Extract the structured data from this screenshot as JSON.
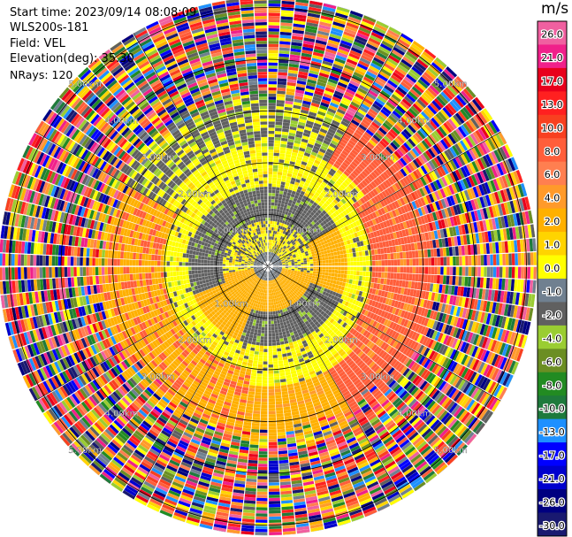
{
  "info": {
    "start_time": "Start time: 2023/09/14 08:08:09",
    "lidar": "WLS200s-181",
    "field": "Field: VEL",
    "elevation": "Elevation(deg): 35.30",
    "nrays": "NRays: 120"
  },
  "colorbar": {
    "title": "m/s",
    "ticks": [
      "26.0",
      "21.0",
      "17.0",
      "13.0",
      "10.0",
      "8.0",
      "6.0",
      "4.0",
      "2.0",
      "1.0",
      "0.0",
      "-1.0",
      "-2.0",
      "-4.0",
      "-6.0",
      "-8.0",
      "-10.0",
      "-13.0",
      "-17.0",
      "-21.0",
      "-26.0",
      "-30.0"
    ],
    "colors": [
      "#f060a0",
      "#f0208a",
      "#e8001c",
      "#ff2020",
      "#f84020",
      "#ff5e3a",
      "#ff7f50",
      "#ff9a2a",
      "#ffb000",
      "#ffd400",
      "#ffff00",
      "#708090",
      "#606060",
      "#9acd32",
      "#6b8e23",
      "#228b22",
      "#1e7a3c",
      "#1e90ff",
      "#0000ff",
      "#0000cd",
      "#000080",
      "#191970"
    ]
  },
  "chart_data": {
    "type": "heatmap",
    "projection": "polar (PPI)",
    "field": "VEL",
    "units": "m/s",
    "nrays": 120,
    "rings": [
      {
        "range_km": 1.0,
        "label": "1.00km"
      },
      {
        "range_km": 2.0,
        "label": "2.00km"
      },
      {
        "range_km": 3.0,
        "label": "3.00km"
      },
      {
        "range_km": 4.0,
        "label": "4.00km"
      },
      {
        "range_km": 5.0,
        "label": "5.00km"
      }
    ],
    "max_range_km": 5.2,
    "spokes_every_deg": 30,
    "pattern_summary": {
      "inner_core_km": [
        0,
        0.9
      ],
      "green_band_km": [
        0.9,
        1.6
      ],
      "gray_band_km": [
        1.6,
        2.4
      ],
      "yellow_arc_south_west": "positive velocities (~2-4 m/s) from SW to S at 1.5-3.3 km",
      "orange_arc_east": "positive velocities (~8-10 m/s) to the E at 2-3 km",
      "noise_km": [
        3.0,
        5.2
      ]
    }
  }
}
